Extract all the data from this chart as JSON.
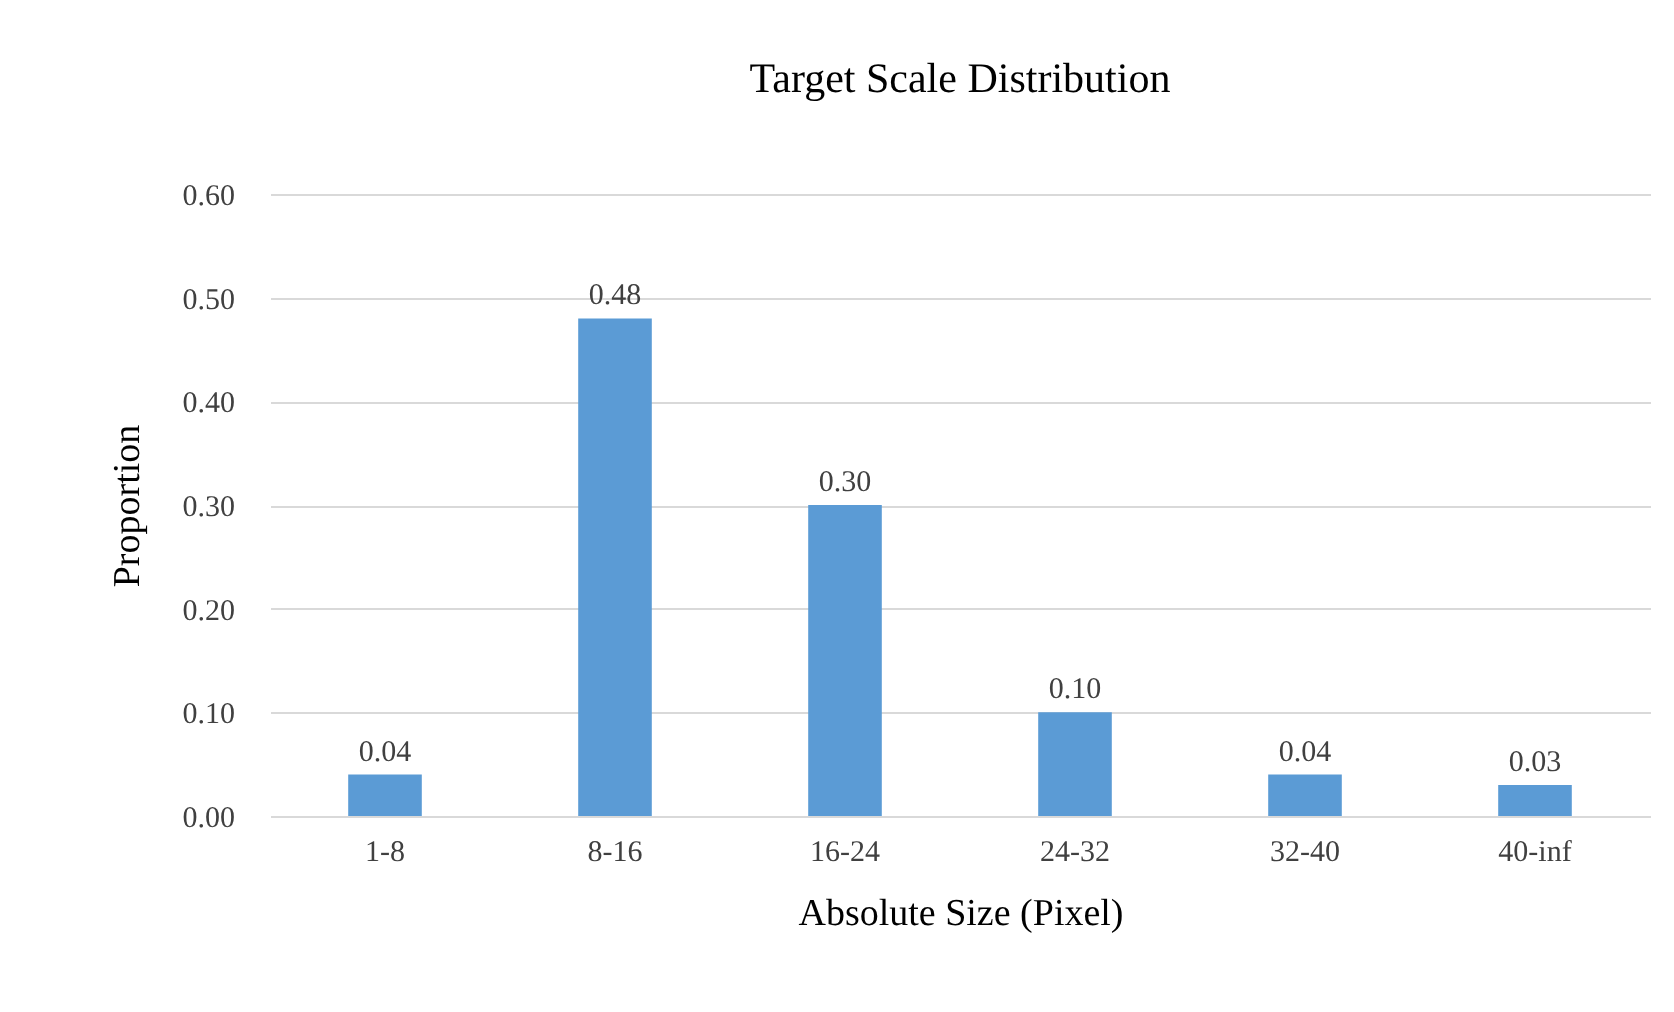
{
  "chart_data": {
    "type": "bar",
    "title": "Target Scale Distribution",
    "xlabel": "Absolute Size (Pixel)",
    "ylabel": "Proportion",
    "categories": [
      "1-8",
      "8-16",
      "16-24",
      "24-32",
      "32-40",
      "40-inf"
    ],
    "values": [
      0.04,
      0.48,
      0.3,
      0.1,
      0.04,
      0.03
    ],
    "color": "#5b9bd5",
    "ylim": [
      0,
      0.6
    ],
    "yticks": [
      {
        "value": 0,
        "label": "0.00"
      },
      {
        "value": 0.1,
        "label": "0.10"
      },
      {
        "value": 0.2,
        "label": "0.20"
      },
      {
        "value": 0.3,
        "label": "0.30"
      },
      {
        "value": 0.4,
        "label": "0.40"
      },
      {
        "value": 0.5,
        "label": "0.50"
      },
      {
        "value": 0.6,
        "label": "0.60"
      }
    ],
    "value_labels": [
      "0.04",
      "0.48",
      "0.30",
      "0.10",
      "0.04",
      "0.03"
    ],
    "grid": "y"
  }
}
